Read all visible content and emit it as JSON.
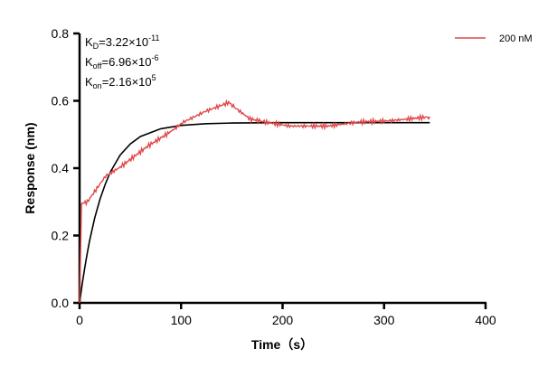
{
  "chart_data": {
    "type": "line",
    "xlabel": "Time（s）",
    "ylabel": "Response (nm)",
    "xlim": [
      0,
      400
    ],
    "ylim": [
      0,
      0.8
    ],
    "xticks": [
      "0",
      "100",
      "200",
      "300",
      "400"
    ],
    "yticks": [
      "0.0",
      "0.2",
      "0.4",
      "0.6",
      "0.8"
    ],
    "grid": false,
    "legend_placement": "top-right",
    "annotations": {
      "kd": {
        "base": "K",
        "sub": "D",
        "mid": "=3.22×10",
        "sup": "-11"
      },
      "koff": {
        "base": "K",
        "sub": "off",
        "mid": "=6.96×10",
        "sup": "-6"
      },
      "kon": {
        "base": "K",
        "sub": "on",
        "mid": "=2.16×10",
        "sup": "5"
      }
    },
    "series": [
      {
        "name": "200 nM",
        "color": "#e04848",
        "x": [
          0,
          2,
          7.7,
          25.5,
          40,
          67,
          88,
          102.5,
          123.5,
          147,
          156,
          168,
          183,
          207,
          245,
          275,
          307,
          343,
          345
        ],
        "y": [
          0,
          0.295,
          0.3,
          0.376,
          0.403,
          0.465,
          0.505,
          0.537,
          0.568,
          0.595,
          0.573,
          0.546,
          0.537,
          0.525,
          0.525,
          0.537,
          0.541,
          0.552,
          0.553
        ]
      },
      {
        "color": "#000000",
        "x": [
          0,
          2.5,
          5,
          7.5,
          10,
          15,
          20,
          25,
          30,
          40,
          50,
          60,
          80,
          100,
          125,
          150,
          200,
          345
        ],
        "y": [
          0,
          0.054,
          0.102,
          0.146,
          0.186,
          0.253,
          0.307,
          0.35,
          0.387,
          0.439,
          0.472,
          0.494,
          0.517,
          0.527,
          0.532,
          0.534,
          0.535,
          0.535
        ]
      }
    ]
  }
}
